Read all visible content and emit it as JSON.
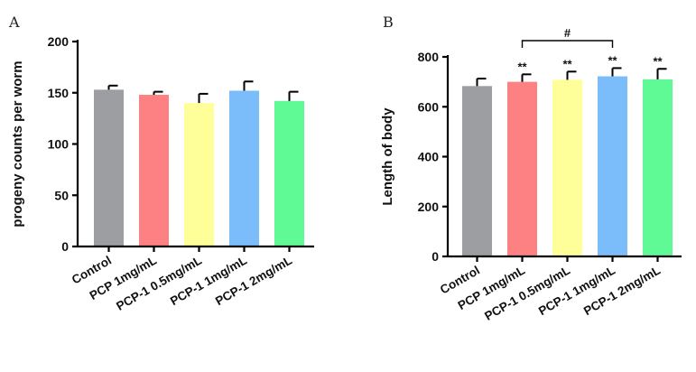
{
  "chart_data": [
    {
      "type": "bar",
      "panel": "A",
      "ylabel": "progeny counts per worm",
      "xlabel": "",
      "ylim": [
        0,
        200
      ],
      "yticks": [
        0,
        50,
        100,
        150,
        200
      ],
      "categories": [
        "Control",
        "PCP   1mg/mL",
        "PCP-1 0.5mg/mL",
        "PCP-1 1mg/mL",
        "PCP-1 2mg/mL"
      ],
      "values": [
        153,
        148,
        140,
        152,
        142
      ],
      "errors": [
        4,
        3,
        9,
        9,
        9
      ],
      "significance": [
        "",
        "",
        "",
        "",
        ""
      ],
      "bracket": null
    },
    {
      "type": "bar",
      "panel": "B",
      "ylabel": "Length of body",
      "xlabel": "",
      "ylim": [
        0,
        800
      ],
      "yticks": [
        0,
        200,
        400,
        600,
        800
      ],
      "categories": [
        "Control",
        "PCP   1mg/mL",
        "PCP-1 0.5mg/mL",
        "PCP-1 1mg/mL",
        "PCP-1 2mg/mL"
      ],
      "values": [
        683,
        700,
        708,
        722,
        710
      ],
      "errors": [
        30,
        30,
        33,
        33,
        42
      ],
      "significance": [
        "",
        "**",
        "**",
        "**",
        "**"
      ],
      "bracket": {
        "from": 1,
        "to": 3,
        "label": "#"
      }
    }
  ],
  "colors": [
    "#9d9ea2",
    "#fd8082",
    "#ffff99",
    "#7bbdfa",
    "#5ffa95"
  ]
}
